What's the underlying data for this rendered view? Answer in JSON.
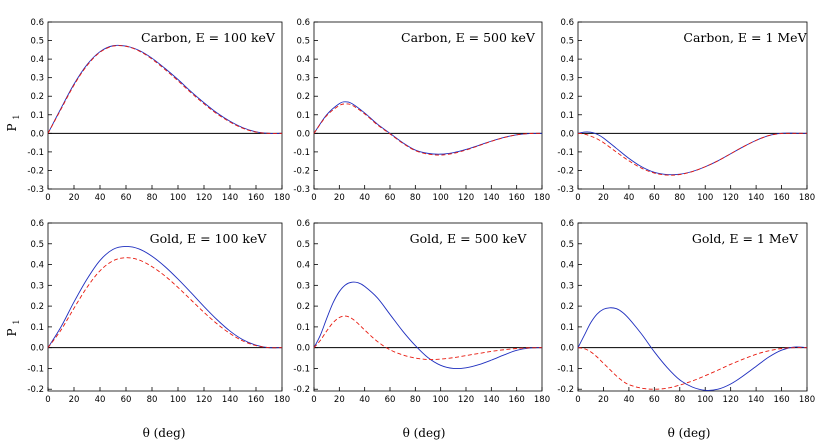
{
  "figure": {
    "xlabel": "θ (deg)",
    "ylabel_main": "P",
    "ylabel_sub": "1"
  },
  "chart_data": [
    {
      "type": "line",
      "title": "Carbon, E = 100 keV",
      "xlabel": "",
      "ylabel": "P1",
      "xlim": [
        0,
        180
      ],
      "ylim": [
        -0.3,
        0.6
      ],
      "xticks": [
        0,
        20,
        40,
        60,
        80,
        100,
        120,
        140,
        160,
        180
      ],
      "yticks": [
        -0.3,
        -0.2,
        -0.1,
        0.0,
        0.1,
        0.2,
        0.3,
        0.4,
        0.5,
        0.6
      ],
      "x": [
        0,
        10,
        20,
        30,
        40,
        50,
        60,
        70,
        80,
        90,
        100,
        110,
        120,
        130,
        140,
        150,
        160,
        170,
        180
      ],
      "series": [
        {
          "color": "#1f2fbf",
          "dash": "solid",
          "values": [
            0.0,
            0.135,
            0.265,
            0.37,
            0.44,
            0.472,
            0.47,
            0.447,
            0.405,
            0.35,
            0.29,
            0.225,
            0.165,
            0.11,
            0.065,
            0.03,
            0.008,
            0.0,
            0.0
          ]
        },
        {
          "color": "#e8190e",
          "dash": "dashed",
          "values": [
            0.0,
            0.13,
            0.26,
            0.365,
            0.437,
            0.47,
            0.469,
            0.444,
            0.4,
            0.344,
            0.283,
            0.219,
            0.159,
            0.105,
            0.061,
            0.027,
            0.007,
            0.0,
            0.0
          ]
        }
      ]
    },
    {
      "type": "line",
      "title": "Carbon, E = 500 keV",
      "xlabel": "",
      "ylabel": "",
      "xlim": [
        0,
        180
      ],
      "ylim": [
        -0.3,
        0.6
      ],
      "xticks": [
        0,
        20,
        40,
        60,
        80,
        100,
        120,
        140,
        160,
        180
      ],
      "yticks": [
        -0.3,
        -0.2,
        -0.1,
        0.0,
        0.1,
        0.2,
        0.3,
        0.4,
        0.5,
        0.6
      ],
      "x": [
        0,
        10,
        20,
        25,
        30,
        40,
        50,
        60,
        70,
        80,
        90,
        100,
        110,
        120,
        130,
        140,
        150,
        160,
        170,
        180
      ],
      "series": [
        {
          "color": "#1f2fbf",
          "dash": "solid",
          "values": [
            0.0,
            0.1,
            0.16,
            0.17,
            0.16,
            0.11,
            0.05,
            0.0,
            -0.05,
            -0.09,
            -0.108,
            -0.112,
            -0.104,
            -0.087,
            -0.065,
            -0.042,
            -0.022,
            -0.008,
            -0.001,
            0.0
          ]
        },
        {
          "color": "#e8190e",
          "dash": "dashed",
          "values": [
            0.0,
            0.095,
            0.15,
            0.158,
            0.152,
            0.105,
            0.046,
            -0.003,
            -0.053,
            -0.093,
            -0.112,
            -0.117,
            -0.108,
            -0.09,
            -0.067,
            -0.043,
            -0.023,
            -0.008,
            -0.001,
            0.0
          ]
        }
      ]
    },
    {
      "type": "line",
      "title": "Carbon, E = 1 MeV",
      "xlabel": "",
      "ylabel": "",
      "xlim": [
        0,
        180
      ],
      "ylim": [
        -0.3,
        0.6
      ],
      "xticks": [
        0,
        20,
        40,
        60,
        80,
        100,
        120,
        140,
        160,
        180
      ],
      "yticks": [
        -0.3,
        -0.2,
        -0.1,
        0.0,
        0.1,
        0.2,
        0.3,
        0.4,
        0.5,
        0.6
      ],
      "x": [
        0,
        5,
        10,
        15,
        20,
        30,
        40,
        50,
        60,
        70,
        80,
        90,
        100,
        110,
        120,
        130,
        140,
        150,
        160,
        170,
        180
      ],
      "series": [
        {
          "color": "#1f2fbf",
          "dash": "solid",
          "values": [
            0.0,
            0.007,
            0.006,
            -0.005,
            -0.025,
            -0.08,
            -0.135,
            -0.18,
            -0.21,
            -0.222,
            -0.22,
            -0.205,
            -0.18,
            -0.148,
            -0.11,
            -0.072,
            -0.038,
            -0.012,
            0.0,
            0.001,
            0.0
          ]
        },
        {
          "color": "#e8190e",
          "dash": "dashed",
          "values": [
            0.0,
            -0.004,
            -0.015,
            -0.03,
            -0.05,
            -0.1,
            -0.148,
            -0.188,
            -0.214,
            -0.225,
            -0.222,
            -0.206,
            -0.18,
            -0.148,
            -0.11,
            -0.072,
            -0.038,
            -0.012,
            -0.001,
            0.0,
            0.0
          ]
        }
      ]
    },
    {
      "type": "line",
      "title": "Gold, E = 100 keV",
      "xlabel": "θ (deg)",
      "ylabel": "P1",
      "xlim": [
        0,
        180
      ],
      "ylim": [
        -0.3,
        0.6
      ],
      "xticks": [
        0,
        20,
        40,
        60,
        80,
        100,
        120,
        140,
        160,
        180
      ],
      "yticks": [
        -0.2,
        -0.1,
        0.0,
        0.1,
        0.2,
        0.3,
        0.4,
        0.5,
        0.6
      ],
      "x": [
        0,
        10,
        20,
        30,
        40,
        50,
        60,
        70,
        80,
        90,
        100,
        110,
        120,
        130,
        140,
        150,
        160,
        170,
        180
      ],
      "series": [
        {
          "color": "#1f2fbf",
          "dash": "solid",
          "values": [
            0.0,
            0.1,
            0.22,
            0.33,
            0.42,
            0.473,
            0.487,
            0.475,
            0.44,
            0.39,
            0.33,
            0.265,
            0.198,
            0.135,
            0.08,
            0.038,
            0.012,
            0.0,
            0.0
          ]
        },
        {
          "color": "#e8190e",
          "dash": "dashed",
          "values": [
            0.0,
            0.085,
            0.19,
            0.29,
            0.37,
            0.418,
            0.433,
            0.422,
            0.39,
            0.345,
            0.29,
            0.23,
            0.17,
            0.115,
            0.068,
            0.032,
            0.01,
            0.0,
            0.0
          ]
        }
      ]
    },
    {
      "type": "line",
      "title": "Gold, E = 500 keV",
      "xlabel": "θ (deg)",
      "ylabel": "",
      "xlim": [
        0,
        180
      ],
      "ylim": [
        -0.3,
        0.6
      ],
      "xticks": [
        0,
        20,
        40,
        60,
        80,
        100,
        120,
        140,
        160,
        180
      ],
      "yticks": [
        -0.2,
        -0.1,
        0.0,
        0.1,
        0.2,
        0.3,
        0.4,
        0.5,
        0.6
      ],
      "x": [
        0,
        5,
        10,
        15,
        20,
        25,
        30,
        35,
        40,
        50,
        60,
        70,
        80,
        90,
        100,
        110,
        120,
        130,
        140,
        150,
        160,
        170,
        180
      ],
      "series": [
        {
          "color": "#1f2fbf",
          "dash": "solid",
          "values": [
            0.0,
            0.06,
            0.14,
            0.215,
            0.27,
            0.303,
            0.315,
            0.312,
            0.295,
            0.24,
            0.16,
            0.08,
            0.01,
            -0.048,
            -0.085,
            -0.1,
            -0.097,
            -0.082,
            -0.06,
            -0.035,
            -0.013,
            -0.002,
            0.0
          ]
        },
        {
          "color": "#e8190e",
          "dash": "dashed",
          "values": [
            0.0,
            0.035,
            0.08,
            0.12,
            0.145,
            0.152,
            0.14,
            0.115,
            0.085,
            0.03,
            -0.01,
            -0.035,
            -0.05,
            -0.057,
            -0.055,
            -0.048,
            -0.038,
            -0.028,
            -0.018,
            -0.01,
            -0.004,
            -0.001,
            0.0
          ]
        }
      ]
    },
    {
      "type": "line",
      "title": "Gold, E = 1 MeV",
      "xlabel": "θ (deg)",
      "ylabel": "",
      "xlim": [
        0,
        180
      ],
      "ylim": [
        -0.3,
        0.6
      ],
      "xticks": [
        0,
        20,
        40,
        60,
        80,
        100,
        120,
        140,
        160,
        180
      ],
      "yticks": [
        -0.2,
        -0.1,
        0.0,
        0.1,
        0.2,
        0.3,
        0.4,
        0.5,
        0.6
      ],
      "x": [
        0,
        5,
        10,
        15,
        20,
        25,
        30,
        35,
        40,
        50,
        60,
        70,
        80,
        90,
        100,
        110,
        120,
        130,
        140,
        150,
        160,
        170,
        180
      ],
      "series": [
        {
          "color": "#1f2fbf",
          "dash": "solid",
          "values": [
            0.0,
            0.06,
            0.12,
            0.162,
            0.185,
            0.192,
            0.188,
            0.17,
            0.14,
            0.065,
            -0.02,
            -0.095,
            -0.155,
            -0.19,
            -0.205,
            -0.2,
            -0.175,
            -0.135,
            -0.09,
            -0.045,
            -0.012,
            0.003,
            0.0
          ]
        },
        {
          "color": "#e8190e",
          "dash": "dashed",
          "values": [
            0.0,
            -0.005,
            -0.02,
            -0.045,
            -0.075,
            -0.105,
            -0.135,
            -0.16,
            -0.178,
            -0.195,
            -0.2,
            -0.195,
            -0.18,
            -0.16,
            -0.135,
            -0.108,
            -0.08,
            -0.055,
            -0.032,
            -0.015,
            -0.004,
            0.0,
            0.0
          ]
        }
      ]
    }
  ]
}
